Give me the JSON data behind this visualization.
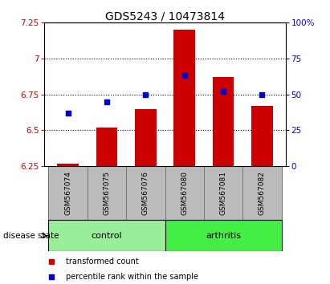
{
  "title": "GDS5243 / 10473814",
  "samples": [
    "GSM567074",
    "GSM567075",
    "GSM567076",
    "GSM567080",
    "GSM567081",
    "GSM567082"
  ],
  "red_values": [
    6.27,
    6.52,
    6.65,
    7.2,
    6.87,
    6.67
  ],
  "blue_percentiles": [
    37,
    45,
    50,
    63,
    52,
    50
  ],
  "ylim_left": [
    6.25,
    7.25
  ],
  "ylim_right": [
    0,
    100
  ],
  "yticks_left": [
    6.25,
    6.5,
    6.75,
    7.0,
    7.25
  ],
  "yticks_right": [
    0,
    25,
    50,
    75,
    100
  ],
  "ytick_labels_left": [
    "6.25",
    "6.5",
    "6.75",
    "7",
    "7.25"
  ],
  "ytick_labels_right": [
    "0",
    "25",
    "50",
    "75",
    "100%"
  ],
  "hlines": [
    6.5,
    6.75,
    7.0
  ],
  "bar_bottom": 6.25,
  "bar_color": "#cc0000",
  "dot_color": "#0000cc",
  "control_color": "#99ee99",
  "arthritis_color": "#44ee44",
  "label_box_color": "#bbbbbb",
  "disease_state_label": "disease state",
  "control_label": "control",
  "arthritis_label": "arthritis",
  "legend_red_label": "transformed count",
  "legend_blue_label": "percentile rank within the sample",
  "bar_width": 0.55,
  "title_fontsize": 10,
  "tick_fontsize": 7.5,
  "sample_fontsize": 6.5
}
